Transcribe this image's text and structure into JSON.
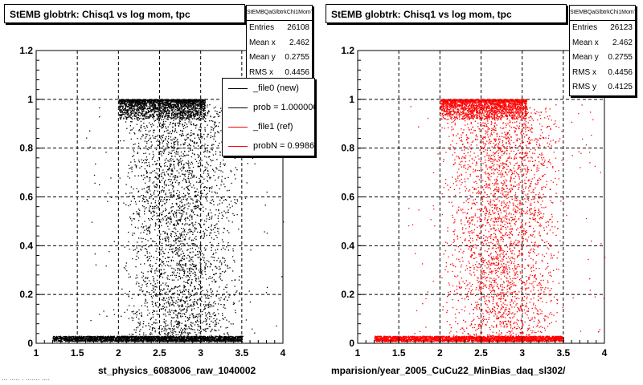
{
  "chart_data": [
    {
      "type": "scatter",
      "title": "StEMB globtrk: Chisq1 vs log mom, tpc",
      "xlabel": "st_physics_6083006_raw_1040002",
      "ylabel": "",
      "xlim": [
        1,
        4
      ],
      "ylim": [
        0,
        1.2
      ],
      "xticks": [
        "1",
        "1.5",
        "2",
        "2.5",
        "3",
        "3.5",
        "4"
      ],
      "yticks": [
        "0",
        "0.2",
        "0.4",
        "0.6",
        "0.8",
        "1",
        "1.2"
      ],
      "grid": true,
      "marker_color": "#000000",
      "point_density": {
        "x_range": [
          1.2,
          3.6
        ],
        "core_x_range": [
          2.0,
          3.5
        ],
        "dense_bands_y": [
          0.02,
          1.0
        ]
      },
      "stats": {
        "header": "StEMBQaGlbtrkChi1MomT",
        "entries_label": "Entries",
        "entries": "26108",
        "mean_x_label": "Mean x",
        "mean_x": "2.462",
        "mean_y_label": "Mean y",
        "mean_y": "0.2755",
        "rms_x_label": "RMS x",
        "rms_x": "0.4456"
      },
      "legend": {
        "placement": "top-right",
        "entries": [
          {
            "label": "_file0 (new)",
            "color": "#000000"
          },
          {
            "label": "prob = 1.000000",
            "color": "#000000"
          },
          {
            "label": "_file1 (ref)",
            "color": "#ff0000"
          },
          {
            "label": "probN = 0.998608",
            "color": "#ff0000"
          }
        ]
      }
    },
    {
      "type": "scatter",
      "title": "StEMB globtrk: Chisq1 vs log mom, tpc",
      "xlabel": "mparision/year_2005_CuCu22_MinBias_daq_sl302/",
      "ylabel": "",
      "xlim": [
        1,
        4
      ],
      "ylim": [
        0,
        1.2
      ],
      "xticks": [
        "1",
        "1.5",
        "2",
        "2.5",
        "3",
        "3.5",
        "4"
      ],
      "yticks": [
        "0",
        "0.2",
        "0.4",
        "0.6",
        "0.8",
        "1",
        "1.2"
      ],
      "grid": true,
      "marker_color": "#ff0000",
      "point_density": {
        "x_range": [
          1.2,
          3.6
        ],
        "core_x_range": [
          2.0,
          3.5
        ],
        "dense_bands_y": [
          0.02,
          1.0
        ]
      },
      "stats": {
        "header": "StEMBQaGlbtrkChi1MomT",
        "entries_label": "Entries",
        "entries": "26123",
        "mean_x_label": "Mean x",
        "mean_x": "2.462",
        "mean_y_label": "Mean y",
        "mean_y": "0.2755",
        "rms_x_label": "RMS x",
        "rms_x": "0.4456",
        "rms_y_label": "RMS y",
        "rms_y": "0.4125"
      }
    }
  ],
  "footer": {
    "text": "... ..... . ....... ...."
  }
}
